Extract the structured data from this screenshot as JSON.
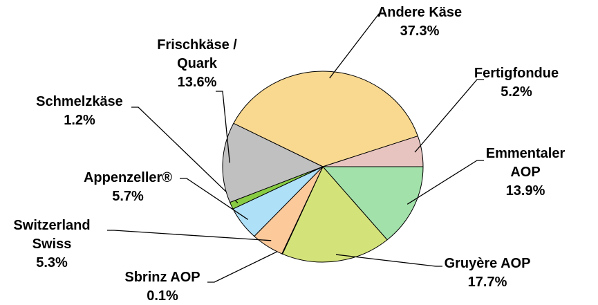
{
  "chart_data": {
    "type": "pie",
    "categories": [
      "Andere Käse",
      "Fertigfondue",
      "Emmentaler AOP",
      "Gruyère AOP",
      "Sbrinz AOP",
      "Switzerland Swiss",
      "Appenzeller®",
      "Schmelzkäse",
      "Frischkäse / Quark"
    ],
    "values": [
      37.3,
      5.2,
      13.9,
      17.7,
      0.1,
      5.3,
      5.7,
      1.2,
      13.6
    ],
    "value_labels": [
      "37.3%",
      "5.2%",
      "13.9%",
      "17.7%",
      "0.1%",
      "5.3%",
      "5.7%",
      "1.2%",
      "13.6%"
    ],
    "colors": [
      "#f9d88f",
      "#e8c4c0",
      "#a2e2aa",
      "#d4e27a",
      "#f5a060",
      "#fcc99a",
      "#aee0f8",
      "#88cc44",
      "#c0c0c0"
    ]
  }
}
